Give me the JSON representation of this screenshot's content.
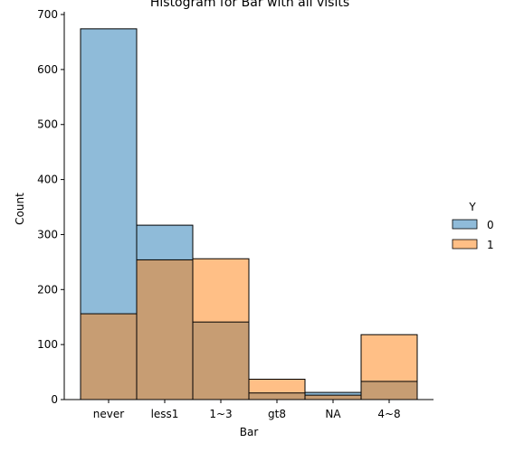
{
  "chart_data": {
    "type": "bar",
    "title": "Histogram for Bar with all visits",
    "xlabel": "Bar",
    "ylabel": "Count",
    "ylim": [
      0,
      705
    ],
    "yticks": [
      0,
      100,
      200,
      300,
      400,
      500,
      600,
      700
    ],
    "categories": [
      "never",
      "less1",
      "1~3",
      "gt8",
      "NA",
      "4~8"
    ],
    "series": [
      {
        "name": "0",
        "values": [
          674,
          317,
          141,
          12,
          13,
          33
        ],
        "color": "#1f77b4"
      },
      {
        "name": "1",
        "values": [
          156,
          254,
          256,
          37,
          8,
          118
        ],
        "color": "#ff7f0e"
      }
    ],
    "overlap_color": "#8e9597",
    "legend": {
      "title": "Y",
      "placement": "right"
    },
    "grid": false
  }
}
